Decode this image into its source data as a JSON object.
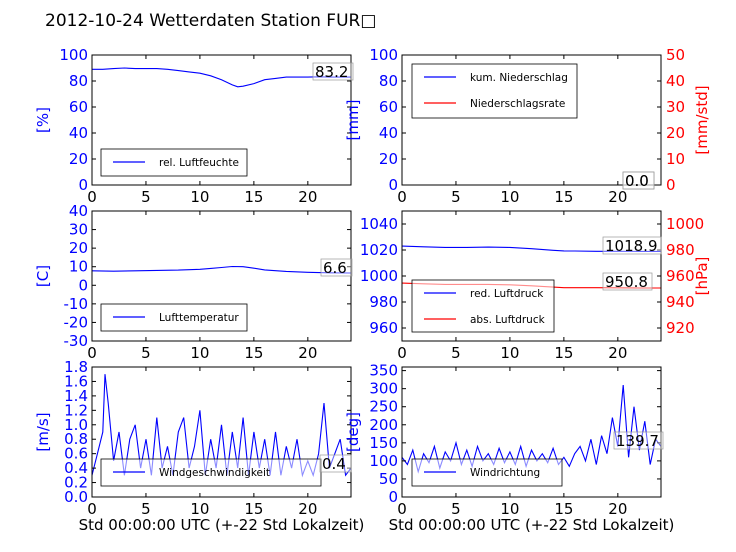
{
  "title": "2012-10-24 Wetterdaten Station FUR□",
  "colors": {
    "left_axis": "#0000ff",
    "right_axis": "#ff0000",
    "frame": "#000000"
  },
  "chart_data": [
    {
      "id": "humidity",
      "type": "line",
      "ylabel": "[%]",
      "xlim": [
        0,
        24
      ],
      "ylim": [
        0,
        100
      ],
      "xticks": [
        0,
        5,
        10,
        15,
        20
      ],
      "yticks": [
        0,
        20,
        40,
        60,
        80,
        100
      ],
      "legend": "lower-left",
      "series": [
        {
          "name": "rel. Luftfeuchte",
          "color": "#0000ff",
          "axis": "left",
          "x": [
            0,
            1,
            2,
            3,
            4,
            5,
            6,
            7,
            8,
            9,
            10,
            11,
            12,
            13,
            13.5,
            14,
            15,
            16,
            17,
            18,
            19,
            20,
            21,
            22,
            23,
            24
          ],
          "y": [
            89,
            89,
            89.5,
            90,
            89.5,
            89.5,
            89.5,
            89,
            88,
            87,
            86,
            84,
            81,
            77,
            75.5,
            76,
            78,
            81,
            82,
            83,
            83,
            83,
            83.2,
            83,
            83,
            83
          ]
        }
      ],
      "annotation": "83.2"
    },
    {
      "id": "precip",
      "type": "line",
      "ylabel": "[mm]",
      "y2label": "[mm/std]",
      "xlim": [
        0,
        24
      ],
      "ylim": [
        0,
        100
      ],
      "y2lim": [
        0,
        50
      ],
      "xticks": [
        0,
        5,
        10,
        15,
        20
      ],
      "yticks": [
        0,
        20,
        40,
        60,
        80,
        100
      ],
      "y2ticks": [
        0,
        10,
        20,
        30,
        40,
        50
      ],
      "legend": "top-left",
      "series": [
        {
          "name": "kum. Niederschlag",
          "color": "#0000ff",
          "axis": "left",
          "x": [
            0,
            24
          ],
          "y": [
            0,
            0
          ]
        },
        {
          "name": "Niederschlagsrate",
          "color": "#ff0000",
          "axis": "right",
          "x": [
            0,
            24
          ],
          "y": [
            0,
            0
          ]
        }
      ],
      "annotations": [
        "0.0",
        "0.0"
      ]
    },
    {
      "id": "temperature",
      "type": "line",
      "ylabel": "[C]",
      "xlim": [
        0,
        24
      ],
      "ylim": [
        -30,
        40
      ],
      "xticks": [
        0,
        5,
        10,
        15,
        20
      ],
      "yticks": [
        -30,
        -20,
        -10,
        0,
        10,
        20,
        30,
        40
      ],
      "legend": "lower-left",
      "series": [
        {
          "name": "Lufttemperatur",
          "color": "#0000ff",
          "axis": "left",
          "x": [
            0,
            2,
            4,
            6,
            8,
            10,
            11,
            12,
            13,
            14,
            15,
            16,
            18,
            20,
            22,
            24
          ],
          "y": [
            7.8,
            7.6,
            7.8,
            8,
            8.2,
            8.6,
            9.1,
            9.6,
            10.1,
            10,
            9.2,
            8.3,
            7.5,
            7,
            6.7,
            6.6
          ]
        }
      ],
      "annotation": "6.6"
    },
    {
      "id": "pressure",
      "type": "line",
      "ylabel": "",
      "y2label": "[hPa]",
      "xlim": [
        0,
        24
      ],
      "ylim": [
        950,
        1050
      ],
      "y2lim": [
        910,
        1010
      ],
      "xticks": [
        0,
        5,
        10,
        15,
        20
      ],
      "yticks": [
        960,
        980,
        1000,
        1020,
        1040
      ],
      "y2ticks": [
        920,
        940,
        960,
        980,
        1000
      ],
      "legend": "lower-left",
      "series": [
        {
          "name": "red. Luftdruck",
          "color": "#0000ff",
          "axis": "left",
          "x": [
            0,
            2,
            4,
            6,
            8,
            10,
            12,
            14,
            15,
            16,
            18,
            20,
            22,
            24
          ],
          "y": [
            1023,
            1022.5,
            1022,
            1022,
            1022.2,
            1022,
            1021,
            1019.8,
            1019.3,
            1019.2,
            1019,
            1019,
            1018.9,
            1018.9
          ]
        },
        {
          "name": "abs. Luftdruck",
          "color": "#ff0000",
          "axis": "right",
          "x": [
            0,
            2,
            4,
            6,
            8,
            10,
            12,
            14,
            15,
            16,
            18,
            20,
            22,
            24
          ],
          "y": [
            954.5,
            954,
            953.5,
            953.5,
            953.5,
            953.2,
            952.5,
            951.5,
            951,
            951,
            951,
            950.9,
            950.8,
            950.8
          ]
        }
      ],
      "annotations": [
        "1018.9",
        "950.8"
      ]
    },
    {
      "id": "windspeed",
      "type": "line",
      "ylabel": "[m/s]",
      "xlabel": "Std 00:00:00 UTC (+-22 Std Lokalzeit)",
      "xlim": [
        0,
        24
      ],
      "ylim": [
        0,
        1.8
      ],
      "xticks": [
        0,
        5,
        10,
        15,
        20
      ],
      "yticks": [
        0.0,
        0.2,
        0.4,
        0.6,
        0.8,
        1.0,
        1.2,
        1.4,
        1.6,
        1.8
      ],
      "legend": "lower-left",
      "series": [
        {
          "name": "Windgeschwindigkeit",
          "color": "#0000ff",
          "axis": "left",
          "x": [
            0,
            0.5,
            1,
            1.2,
            1.5,
            2,
            2.5,
            3,
            3.5,
            4,
            4.5,
            5,
            5.5,
            6,
            6.5,
            7,
            7.5,
            8,
            8.5,
            9,
            9.5,
            10,
            10.5,
            11,
            11.5,
            12,
            12.5,
            13,
            13.5,
            14,
            14.5,
            15,
            15.5,
            16,
            16.5,
            17,
            17.5,
            18,
            18.5,
            19,
            19.5,
            20,
            20.5,
            21,
            21.5,
            22,
            22.5,
            23,
            23.5,
            24
          ],
          "y": [
            0.3,
            0.6,
            0.9,
            1.7,
            1.3,
            0.5,
            0.9,
            0.3,
            0.8,
            1.0,
            0.4,
            0.8,
            0.3,
            1.1,
            0.4,
            0.7,
            0.3,
            0.9,
            1.1,
            0.4,
            0.7,
            1.2,
            0.3,
            0.8,
            0.4,
            1.0,
            0.3,
            0.9,
            0.4,
            1.1,
            0.3,
            0.9,
            0.4,
            0.8,
            0.3,
            0.9,
            0.3,
            0.7,
            0.4,
            0.8,
            0.3,
            0.5,
            0.3,
            0.6,
            1.3,
            0.4,
            0.6,
            0.8,
            0.3,
            0.4
          ]
        }
      ],
      "annotation": "0.4"
    },
    {
      "id": "winddir",
      "type": "line",
      "ylabel": "[deg]",
      "xlabel": "Std 00:00:00 UTC (+-22 Std Lokalzeit)",
      "xlim": [
        0,
        24
      ],
      "ylim": [
        0,
        360
      ],
      "xticks": [
        0,
        5,
        10,
        15,
        20
      ],
      "yticks": [
        0,
        50,
        100,
        150,
        200,
        250,
        300,
        350
      ],
      "legend": "lower-left",
      "series": [
        {
          "name": "Windrichtung",
          "color": "#0000ff",
          "axis": "left",
          "x": [
            0,
            0.5,
            1,
            1.5,
            2,
            2.5,
            3,
            3.5,
            4,
            4.5,
            5,
            5.5,
            6,
            6.5,
            7,
            7.5,
            8,
            8.5,
            9,
            9.5,
            10,
            10.5,
            11,
            11.5,
            12,
            12.5,
            13,
            13.5,
            14,
            14.5,
            15,
            15.5,
            16,
            16.5,
            17,
            17.5,
            18,
            18.5,
            19,
            19.5,
            20,
            20.5,
            21,
            21.5,
            22,
            22.5,
            23,
            23.5,
            24
          ],
          "y": [
            110,
            90,
            130,
            70,
            120,
            95,
            140,
            80,
            125,
            100,
            150,
            90,
            130,
            85,
            140,
            100,
            120,
            90,
            135,
            95,
            125,
            90,
            140,
            85,
            130,
            100,
            120,
            95,
            135,
            90,
            110,
            85,
            120,
            140,
            100,
            160,
            90,
            170,
            120,
            220,
            140,
            310,
            110,
            250,
            130,
            210,
            90,
            160,
            140
          ]
        }
      ],
      "annotation": "139.7"
    }
  ]
}
